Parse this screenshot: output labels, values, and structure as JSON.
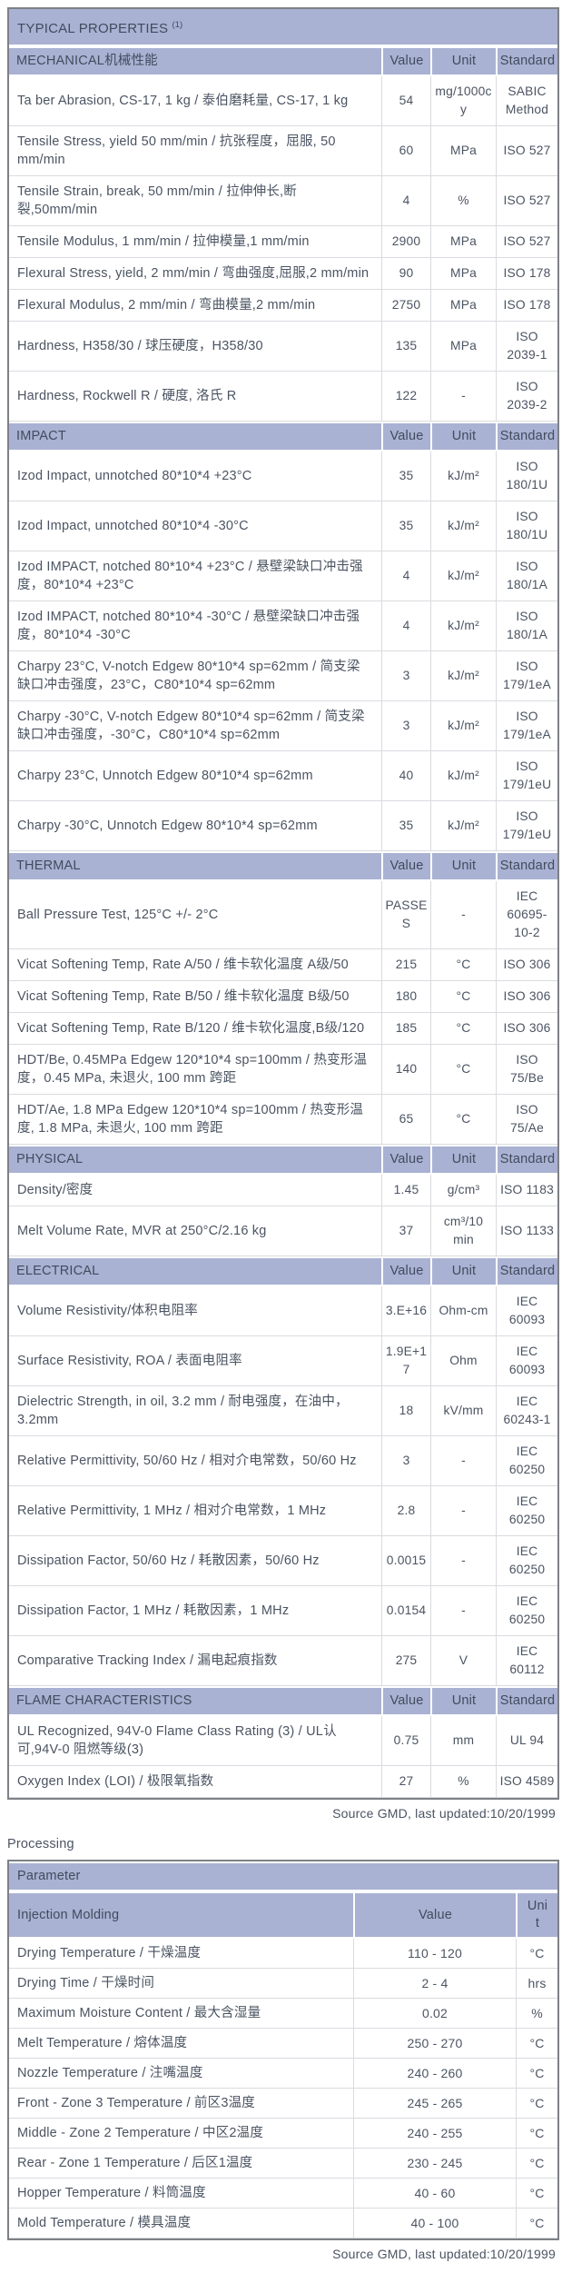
{
  "table1": {
    "title": "TYPICAL PROPERTIES",
    "title_sup": "(1)",
    "columns": [
      "Value",
      "Unit",
      "Standard"
    ],
    "sections": [
      {
        "name": "MECHANICAL机械性能",
        "rows": [
          {
            "param": "Ta ber Abrasion, CS-17, 1 kg / 泰伯磨耗量, CS-17, 1 kg",
            "value": "54",
            "unit": "mg/1000cy",
            "standard": "SABIC\nMethod"
          },
          {
            "param": "Tensile Stress, yield 50 mm/min / 抗张程度，屈服, 50 mm/min",
            "value": "60",
            "unit": "MPa",
            "standard": "ISO 527"
          },
          {
            "param": "Tensile Strain, break, 50 mm/min / 拉伸伸长,断裂,50mm/min",
            "value": "4",
            "unit": "%",
            "standard": "ISO 527"
          },
          {
            "param": "Tensile Modulus, 1 mm/min / 拉伸模量,1 mm/min",
            "value": "2900",
            "unit": "MPa",
            "standard": "ISO 527"
          },
          {
            "param": "Flexural Stress, yield, 2 mm/min / 弯曲强度,屈服,2 mm/min",
            "value": "90",
            "unit": "MPa",
            "standard": "ISO 178"
          },
          {
            "param": "Flexural Modulus, 2 mm/min / 弯曲模量,2 mm/min",
            "value": "2750",
            "unit": "MPa",
            "standard": "ISO 178"
          },
          {
            "param": "Hardness, H358/30 / 球压硬度，H358/30",
            "value": "135",
            "unit": "MPa",
            "standard": "ISO\n2039-1"
          },
          {
            "param": "Hardness, Rockwell R / 硬度, 洛氏 R",
            "value": "122",
            "unit": "-",
            "standard": "ISO\n2039-2"
          }
        ]
      },
      {
        "name": "IMPACT",
        "rows": [
          {
            "param": "Izod Impact, unnotched 80*10*4 +23°C",
            "value": "35",
            "unit": "kJ/m²",
            "standard": "ISO\n180/1U"
          },
          {
            "param": "Izod Impact, unnotched 80*10*4 -30°C",
            "value": "35",
            "unit": "kJ/m²",
            "standard": "ISO\n180/1U"
          },
          {
            "param": "Izod IMPACT, notched 80*10*4 +23°C / 悬壁梁缺口冲击强度，80*10*4 +23°C",
            "value": "4",
            "unit": "kJ/m²",
            "standard": "ISO\n180/1A"
          },
          {
            "param": "Izod IMPACT, notched 80*10*4 -30°C / 悬壁梁缺口冲击强度，80*10*4 -30°C",
            "value": "4",
            "unit": "kJ/m²",
            "standard": "ISO\n180/1A"
          },
          {
            "param": "Charpy 23°C, V-notch Edgew 80*10*4 sp=62mm / 简支梁缺口冲击强度，23°C，C80*10*4 sp=62mm",
            "value": "3",
            "unit": "kJ/m²",
            "standard": "ISO\n179/1eA"
          },
          {
            "param": "Charpy -30°C, V-notch Edgew 80*10*4 sp=62mm / 简支梁缺口冲击强度，-30°C，C80*10*4 sp=62mm",
            "value": "3",
            "unit": "kJ/m²",
            "standard": "ISO\n179/1eA"
          },
          {
            "param": "Charpy 23°C, Unnotch Edgew 80*10*4 sp=62mm",
            "value": "40",
            "unit": "kJ/m²",
            "standard": "ISO\n179/1eU"
          },
          {
            "param": "Charpy -30°C, Unnotch Edgew 80*10*4 sp=62mm",
            "value": "35",
            "unit": "kJ/m²",
            "standard": "ISO\n179/1eU"
          }
        ]
      },
      {
        "name": "THERMAL",
        "rows": [
          {
            "param": "Ball Pressure Test, 125°C +/- 2°C",
            "value": "PASSES",
            "unit": "-",
            "standard": "IEC\n60695-\n10-2"
          },
          {
            "param": "Vicat Softening Temp, Rate A/50 / 维卡软化温度 A级/50",
            "value": "215",
            "unit": "°C",
            "standard": "ISO 306"
          },
          {
            "param": "Vicat Softening Temp, Rate B/50 / 维卡软化温度 B级/50",
            "value": "180",
            "unit": "°C",
            "standard": "ISO 306"
          },
          {
            "param": "Vicat Softening Temp, Rate B/120 / 维卡软化温度,B级/120",
            "value": "185",
            "unit": "°C",
            "standard": "ISO 306"
          },
          {
            "param": "HDT/Be, 0.45MPa Edgew 120*10*4 sp=100mm / 热变形温度，0.45 MPa, 未退火, 100 mm 跨距",
            "value": "140",
            "unit": "°C",
            "standard": "ISO\n75/Be"
          },
          {
            "param": "HDT/Ae, 1.8 MPa Edgew 120*10*4 sp=100mm / 热变形温度, 1.8 MPa, 未退火, 100 mm 跨距",
            "value": "65",
            "unit": "°C",
            "standard": "ISO\n75/Ae"
          }
        ]
      },
      {
        "name": "PHYSICAL",
        "rows": [
          {
            "param": "Density/密度",
            "value": "1.45",
            "unit": "g/cm³",
            "standard": "ISO 1183"
          },
          {
            "param": "Melt Volume Rate, MVR at 250°C/2.16 kg",
            "value": "37",
            "unit": "cm³/10\nmin",
            "standard": "ISO 1133"
          }
        ]
      },
      {
        "name": "ELECTRICAL",
        "rows": [
          {
            "param": "Volume Resistivity/体积电阻率",
            "value": "3.E+16",
            "unit": "Ohm-cm",
            "standard": "IEC\n60093"
          },
          {
            "param": "Surface Resistivity, ROA / 表面电阻率",
            "value": "1.9E+17",
            "unit": "Ohm",
            "standard": "IEC\n60093"
          },
          {
            "param": "Dielectric Strength, in oil, 3.2 mm / 耐电强度，在油中，3.2mm",
            "value": "18",
            "unit": "kV/mm",
            "standard": "IEC\n60243-1"
          },
          {
            "param": "Relative Permittivity, 50/60 Hz / 相对介电常数，50/60 Hz",
            "value": "3",
            "unit": "-",
            "standard": "IEC\n60250"
          },
          {
            "param": "Relative Permittivity, 1 MHz / 相对介电常数，1 MHz",
            "value": "2.8",
            "unit": "-",
            "standard": "IEC\n60250"
          },
          {
            "param": "Dissipation Factor, 50/60 Hz / 耗散因素，50/60 Hz",
            "value": "0.0015",
            "unit": "-",
            "standard": "IEC\n60250"
          },
          {
            "param": "Dissipation Factor, 1 MHz / 耗散因素，1 MHz",
            "value": "0.0154",
            "unit": "-",
            "standard": "IEC\n60250"
          },
          {
            "param": "Comparative Tracking Index / 漏电起痕指数",
            "value": "275",
            "unit": "V",
            "standard": "IEC 60112"
          }
        ]
      },
      {
        "name": "FLAME CHARACTERISTICS",
        "rows": [
          {
            "param": "UL Recognized, 94V-0 Flame Class Rating (3) / UL认可,94V-0 阻燃等级(3)",
            "value": "0.75",
            "unit": "mm",
            "standard": "UL 94"
          },
          {
            "param": "Oxygen Index (LOI) / 极限氧指数",
            "value": "27",
            "unit": "%",
            "standard": "ISO 4589"
          }
        ]
      }
    ],
    "source_note": "Source GMD, last updated:10/20/1999"
  },
  "processing": {
    "heading": "Processing",
    "table2": {
      "header": "Parameter",
      "subheader": "Injection Molding",
      "columns": [
        "Value",
        "Unit"
      ],
      "rows": [
        {
          "param": "Drying Temperature / 干燥温度",
          "value": "110 - 120",
          "unit": "°C"
        },
        {
          "param": "Drying Time / 干燥时间",
          "value": "2 - 4",
          "unit": "hrs"
        },
        {
          "param": "Maximum Moisture Content / 最大含湿量",
          "value": "0.02",
          "unit": "%"
        },
        {
          "param": "Melt Temperature / 熔体温度",
          "value": "250 - 270",
          "unit": "°C"
        },
        {
          "param": "Nozzle Temperature / 注嘴温度",
          "value": "240 - 260",
          "unit": "°C"
        },
        {
          "param": "Front - Zone 3 Temperature / 前区3温度",
          "value": "245 - 265",
          "unit": "°C"
        },
        {
          "param": "Middle - Zone 2 Temperature / 中区2温度",
          "value": "240 - 255",
          "unit": "°C"
        },
        {
          "param": "Rear - Zone 1 Temperature / 后区1温度",
          "value": "230 - 245",
          "unit": "°C"
        },
        {
          "param": "Hopper Temperature / 料筒温度",
          "value": "40 - 60",
          "unit": "°C"
        },
        {
          "param": "Mold Temperature / 模具温度",
          "value": "40 - 100",
          "unit": "°C"
        }
      ],
      "source_note": "Source GMD, last updated:10/20/1999"
    }
  }
}
